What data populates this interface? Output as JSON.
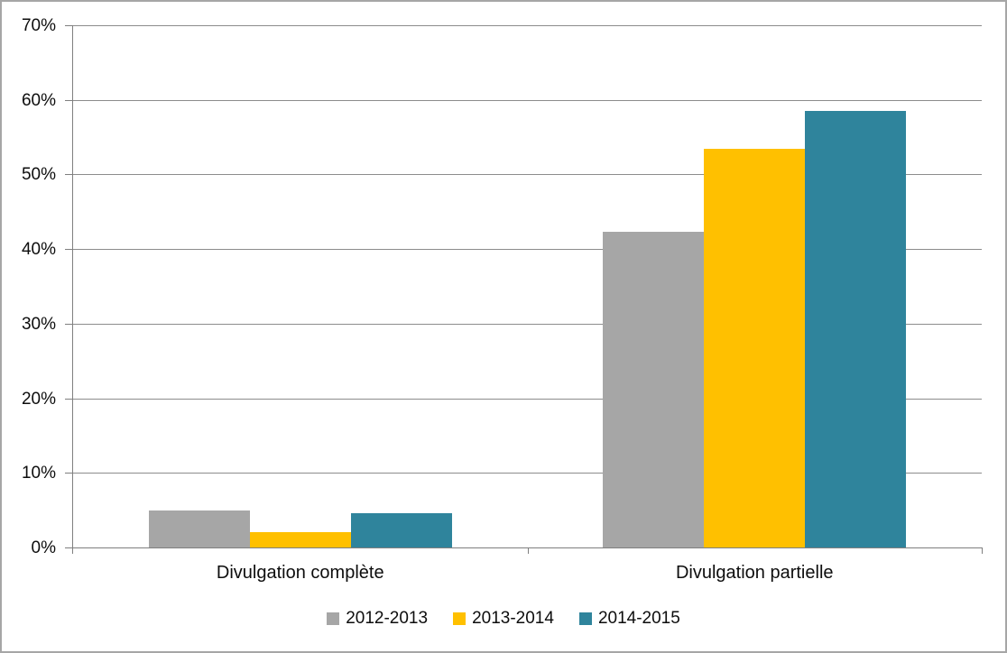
{
  "chart_data": {
    "type": "bar",
    "title": "",
    "categories": [
      "Divulgation complète",
      "Divulgation partielle"
    ],
    "series": [
      {
        "name": "2012-2013",
        "color": "#a6a6a6",
        "values": [
          4.9,
          42.3
        ]
      },
      {
        "name": "2013-2014",
        "color": "#ffc000",
        "values": [
          2.1,
          53.4
        ]
      },
      {
        "name": "2014-2015",
        "color": "#2f849c",
        "values": [
          4.6,
          58.5
        ]
      }
    ],
    "ylim": [
      0,
      70
    ],
    "ytick_step": 10,
    "ytick_labels": [
      "0%",
      "10%",
      "20%",
      "30%",
      "40%",
      "50%",
      "60%",
      "70%"
    ],
    "ylabel_suffix": "%",
    "grid": true,
    "legend_position": "bottom"
  }
}
